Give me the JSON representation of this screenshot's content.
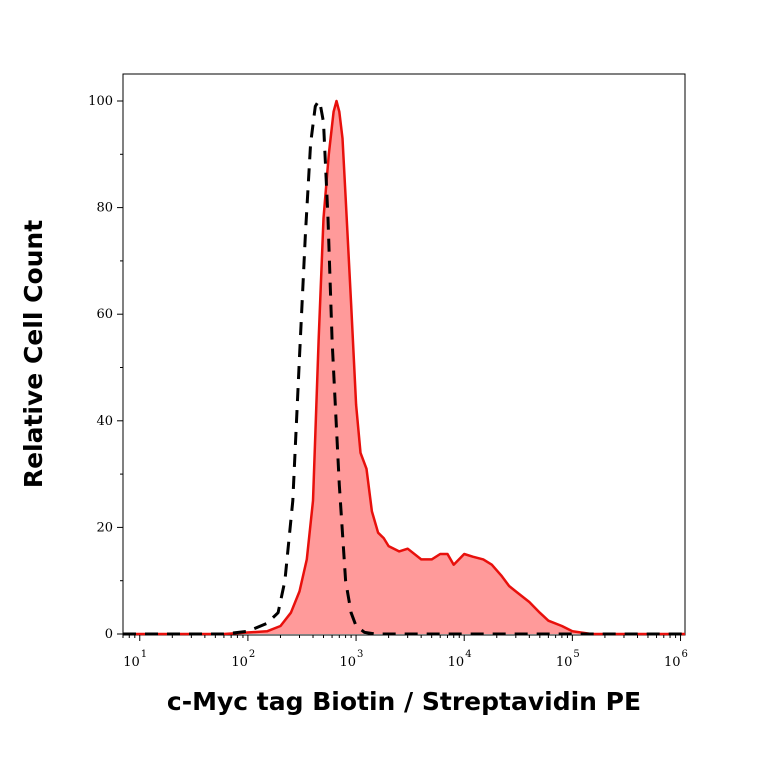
{
  "chart_data": {
    "type": "area",
    "title": "",
    "xlabel": "c-Myc tag Biotin / Streptavidin PE",
    "ylabel": "Relative Cell Count",
    "xscale": "log",
    "xlim": [
      7,
      1100000
    ],
    "ylim": [
      0,
      100
    ],
    "x_ticks": [
      {
        "base": "10",
        "exp": "1",
        "value": 10
      },
      {
        "base": "10",
        "exp": "2",
        "value": 100
      },
      {
        "base": "10",
        "exp": "3",
        "value": 1000
      },
      {
        "base": "10",
        "exp": "4",
        "value": 10000
      },
      {
        "base": "10",
        "exp": "5",
        "value": 100000
      },
      {
        "base": "10",
        "exp": "6",
        "value": 1000000
      }
    ],
    "y_ticks": [
      "0",
      "20",
      "40",
      "60",
      "80",
      "100"
    ],
    "grid": false,
    "legend": "none",
    "series": [
      {
        "style": "filled",
        "line_color": "#e8100c",
        "fill_color": "#ff9a9a",
        "x": [
          7,
          60,
          150,
          200,
          250,
          300,
          350,
          400,
          450,
          500,
          560,
          620,
          660,
          700,
          750,
          800,
          900,
          1000,
          1100,
          1250,
          1400,
          1600,
          1800,
          2000,
          2500,
          3000,
          4000,
          5000,
          6000,
          7000,
          8000,
          10000,
          12000,
          15000,
          18000,
          22000,
          26000,
          30000,
          40000,
          50000,
          60000,
          80000,
          100000,
          150000,
          1100000
        ],
        "y": [
          0,
          0,
          0.5,
          1.5,
          4,
          8,
          14,
          25,
          55,
          78,
          90,
          98,
          100,
          98,
          93,
          82,
          62,
          43,
          34,
          31,
          23,
          19,
          18,
          16.5,
          15.5,
          16,
          14,
          14,
          15,
          15,
          13,
          15,
          14.5,
          14,
          13,
          11,
          9,
          8,
          6,
          4,
          2.5,
          1.5,
          0.5,
          0,
          0
        ]
      },
      {
        "style": "dashed",
        "line_color": "#000000",
        "x": [
          7,
          60,
          100,
          150,
          190,
          220,
          260,
          300,
          340,
          380,
          420,
          450,
          470,
          500,
          550,
          600,
          700,
          800,
          900,
          1000,
          1200,
          1500,
          1100000
        ],
        "y": [
          0,
          0,
          0.5,
          2,
          4,
          10,
          25,
          52,
          75,
          92,
          99,
          100,
          99,
          96,
          78,
          55,
          28,
          10,
          4,
          1.5,
          0.3,
          0,
          0
        ]
      }
    ]
  }
}
